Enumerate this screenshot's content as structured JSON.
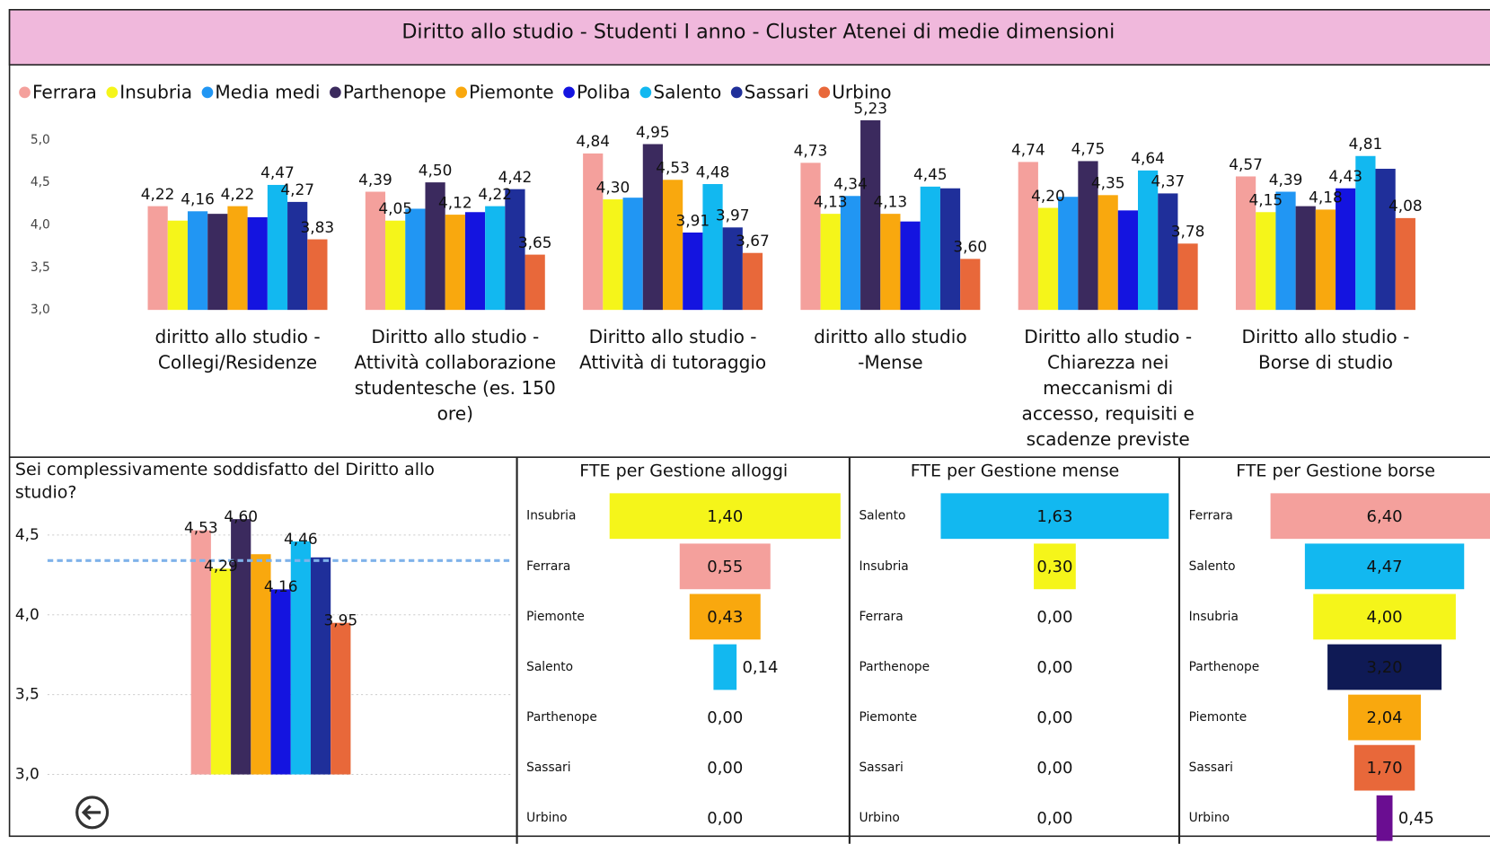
{
  "title": "Diritto allo studio - Studenti I anno - Cluster Atenei di medie dimensioni",
  "chart_data": [
    {
      "type": "bar",
      "categories": [
        "diritto allo studio - Collegi/Residenze",
        "Diritto allo studio - Attività collaborazione studentesche (es. 150 ore)",
        "Diritto allo studio - Attività di tutoraggio",
        "diritto allo studio -Mense",
        "Diritto allo studio - Chiarezza nei meccanismi di accesso, requisiti e scadenze previste",
        "Diritto allo studio - Borse di studio"
      ],
      "series": [
        {
          "name": "Ferrara",
          "color": "#f4a09c",
          "values": [
            4.22,
            4.39,
            4.84,
            4.73,
            4.74,
            4.57
          ],
          "value_labels": [
            "4,22",
            "4,39",
            "4,84",
            "4,73",
            "4,74",
            "4,57"
          ]
        },
        {
          "name": "Insubria",
          "color": "#f5f51a",
          "values": [
            4.05,
            4.05,
            4.3,
            4.13,
            4.2,
            4.15
          ],
          "value_labels": [
            null,
            "4,05",
            "4,30",
            "4,13",
            "4,20",
            "4,15"
          ]
        },
        {
          "name": "Media medi",
          "color": "#2196f3",
          "values": [
            4.16,
            4.19,
            4.32,
            4.34,
            4.33,
            4.39
          ],
          "value_labels": [
            "4,16",
            null,
            null,
            "4,34",
            null,
            "4,39"
          ]
        },
        {
          "name": "Parthenope",
          "color": "#3b2a5e",
          "values": [
            4.13,
            4.5,
            4.95,
            5.23,
            4.75,
            4.22
          ],
          "value_labels": [
            null,
            "4,50",
            "4,95",
            "5,23",
            "4,75",
            null
          ]
        },
        {
          "name": "Piemonte",
          "color": "#f9a80e",
          "values": [
            4.22,
            4.12,
            4.53,
            4.13,
            4.35,
            4.18
          ],
          "value_labels": [
            "4,22",
            "4,12",
            "4,53",
            "4,13",
            "4,35",
            "4,18"
          ]
        },
        {
          "name": "Poliba",
          "color": "#1414e0",
          "values": [
            4.09,
            4.15,
            3.91,
            4.04,
            4.17,
            4.43
          ],
          "value_labels": [
            null,
            null,
            "3,91",
            null,
            null,
            "4,43"
          ]
        },
        {
          "name": "Salento",
          "color": "#12b8f0",
          "values": [
            4.47,
            4.22,
            4.48,
            4.45,
            4.64,
            4.81
          ],
          "value_labels": [
            "4,47",
            "4,22",
            "4,48",
            "4,45",
            "4,64",
            "4,81"
          ]
        },
        {
          "name": "Sassari",
          "color": "#1f2f9a",
          "values": [
            4.27,
            4.42,
            3.97,
            4.43,
            4.37,
            4.66
          ],
          "value_labels": [
            "4,27",
            "4,42",
            "3,97",
            null,
            "4,37",
            null
          ]
        },
        {
          "name": "Urbino",
          "color": "#e8683a",
          "values": [
            3.83,
            3.65,
            3.67,
            3.6,
            3.78,
            4.08
          ],
          "value_labels": [
            "3,83",
            "3,65",
            "3,67",
            "3,60",
            "3,78",
            "4,08"
          ]
        }
      ],
      "ylim": [
        3,
        5.25
      ],
      "yticks": [
        {
          "value": 3,
          "label": "3,0"
        },
        {
          "value": 3.5,
          "label": "3,5"
        },
        {
          "value": 4,
          "label": "4,0"
        },
        {
          "value": 4.5,
          "label": "4,5"
        },
        {
          "value": 5,
          "label": "5,0"
        }
      ],
      "grid": false,
      "legend": "top-left"
    },
    {
      "type": "bar",
      "title": "Sei complessivamente soddisfatto del Diritto allo studio?",
      "values": [
        4.53,
        4.29,
        4.6,
        4.38,
        4.16,
        4.46,
        4.36,
        3.95
      ],
      "value_labels": [
        "4,53",
        "4,29",
        "4,60",
        null,
        "4,16",
        "4,46",
        null,
        "3,95"
      ],
      "colors": [
        "#f4a09c",
        "#f5f51a",
        "#3b2a5e",
        "#f9a80e",
        "#1414e0",
        "#12b8f0",
        "#1f2f9a",
        "#e8683a"
      ],
      "reference_line": 4.34,
      "reference_color": "#7fb2ea",
      "ylim": [
        3,
        4.65
      ],
      "yticks": [
        {
          "value": 3,
          "label": "3,0"
        },
        {
          "value": 3.5,
          "label": "3,5"
        },
        {
          "value": 4,
          "label": "4,0"
        },
        {
          "value": 4.5,
          "label": "4,5"
        }
      ],
      "grid": true
    },
    {
      "type": "funnel",
      "title": "FTE per Gestione alloggi",
      "categories": [
        "Insubria",
        "Ferrara",
        "Piemonte",
        "Salento",
        "Parthenope",
        "Sassari",
        "Urbino"
      ],
      "values": [
        1.4,
        0.55,
        0.43,
        0.14,
        0,
        0,
        0
      ],
      "value_labels": [
        "1,40",
        "0,55",
        "0,43",
        "0,14",
        "0,00",
        "0,00",
        "0,00"
      ],
      "colors": [
        "#f5f51a",
        "#f4a09c",
        "#f9a80e",
        "#12b8f0",
        "#12b8f0",
        "#12b8f0",
        "#12b8f0"
      ],
      "xlim": [
        0,
        1.4
      ]
    },
    {
      "type": "funnel",
      "title": "FTE per Gestione mense",
      "categories": [
        "Salento",
        "Insubria",
        "Ferrara",
        "Parthenope",
        "Piemonte",
        "Sassari",
        "Urbino"
      ],
      "values": [
        1.63,
        0.3,
        0,
        0,
        0,
        0,
        0
      ],
      "value_labels": [
        "1,63",
        "0,30",
        "0,00",
        "0,00",
        "0,00",
        "0,00",
        "0,00"
      ],
      "colors": [
        "#12b8f0",
        "#f5f51a",
        "#f4a09c",
        "#3b2a5e",
        "#f9a80e",
        "#1f2f9a",
        "#e8683a"
      ],
      "xlim": [
        0,
        1.63
      ]
    },
    {
      "type": "funnel",
      "title": "FTE per Gestione borse",
      "categories": [
        "Ferrara",
        "Salento",
        "Insubria",
        "Parthenope",
        "Piemonte",
        "Sassari",
        "Urbino"
      ],
      "values": [
        6.4,
        4.47,
        4.0,
        3.2,
        2.04,
        1.7,
        0.45
      ],
      "value_labels": [
        "6,40",
        "4,47",
        "4,00",
        "3,20",
        "2,04",
        "1,70",
        "0,45"
      ],
      "colors": [
        "#f4a09c",
        "#12b8f0",
        "#f5f51a",
        "#0f1a55",
        "#f9a80e",
        "#e8683a",
        "#6a0d91"
      ],
      "xlim": [
        0,
        6.4
      ]
    }
  ]
}
